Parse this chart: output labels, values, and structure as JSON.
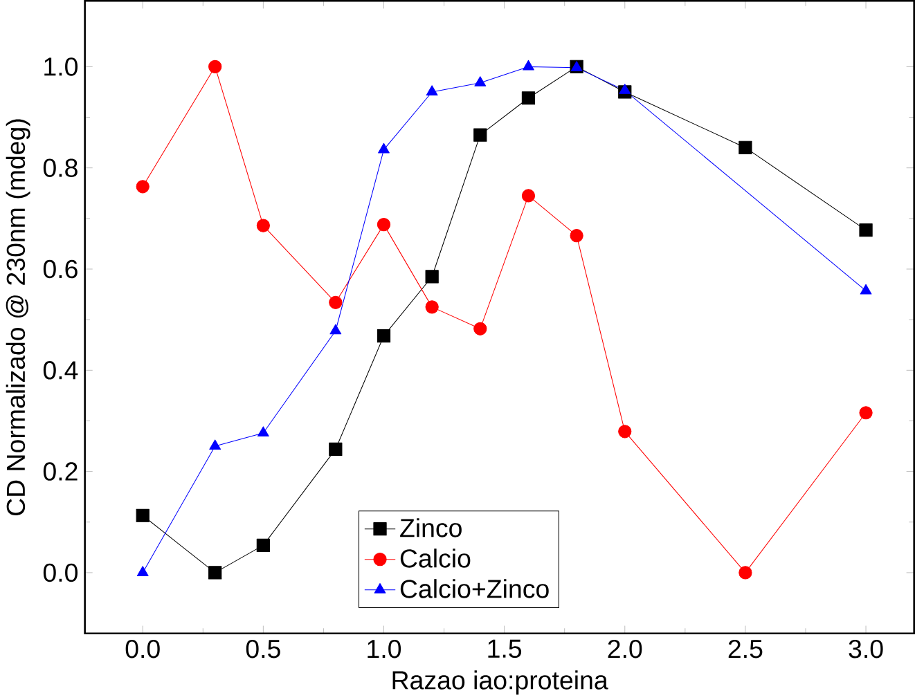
{
  "chart_data": {
    "type": "line",
    "xlabel": "Razao iao:proteina",
    "ylabel": "CD Normalizado @ 230nm (mdeg)",
    "x": [
      0,
      0.3,
      0.5,
      0.8,
      1.0,
      1.2,
      1.4,
      1.6,
      1.8,
      2.0,
      2.5,
      3.0
    ],
    "series": [
      {
        "name": "Zinco",
        "color": "#000000",
        "marker": "square",
        "values": [
          0.113,
          0,
          0.054,
          0.244,
          0.468,
          0.585,
          0.865,
          0.938,
          1.0,
          0.95,
          0.84,
          0.677
        ]
      },
      {
        "name": "Calcio",
        "color": "#ff0000",
        "marker": "circle",
        "values": [
          0.763,
          1.0,
          0.686,
          0.534,
          0.688,
          0.525,
          0.482,
          0.745,
          0.666,
          0.279,
          0,
          0.316
        ]
      },
      {
        "name": "Calcio+Zinco",
        "color": "#0000ff",
        "marker": "triangle",
        "x": [
          0,
          0.3,
          0.5,
          0.8,
          1.0,
          1.2,
          1.4,
          1.6,
          1.8,
          2.0,
          3.0
        ],
        "values": [
          0,
          0.25,
          0.276,
          0.478,
          0.836,
          0.95,
          0.968,
          1.0,
          0.998,
          0.953,
          0.557
        ]
      }
    ],
    "xlim": [
      -0.24,
      3.2
    ],
    "ylim": [
      -0.12,
      1.13
    ],
    "xticks": [
      {
        "value": 0,
        "label": "0.0"
      },
      {
        "value": 0.5,
        "label": "0.5"
      },
      {
        "value": 1,
        "label": "1.0"
      },
      {
        "value": 1.5,
        "label": "1.5"
      },
      {
        "value": 2,
        "label": "2.0"
      },
      {
        "value": 2.5,
        "label": "2.5"
      },
      {
        "value": 3,
        "label": "3.0"
      }
    ],
    "yticks": [
      {
        "value": 0,
        "label": "0.0"
      },
      {
        "value": 0.2,
        "label": "0.2"
      },
      {
        "value": 0.4,
        "label": "0.4"
      },
      {
        "value": 0.6,
        "label": "0.6"
      },
      {
        "value": 0.8,
        "label": "0.8"
      },
      {
        "value": 1.0,
        "label": "1.0"
      }
    ],
    "legend": "bottom",
    "grid": false,
    "line_style": "solid"
  }
}
